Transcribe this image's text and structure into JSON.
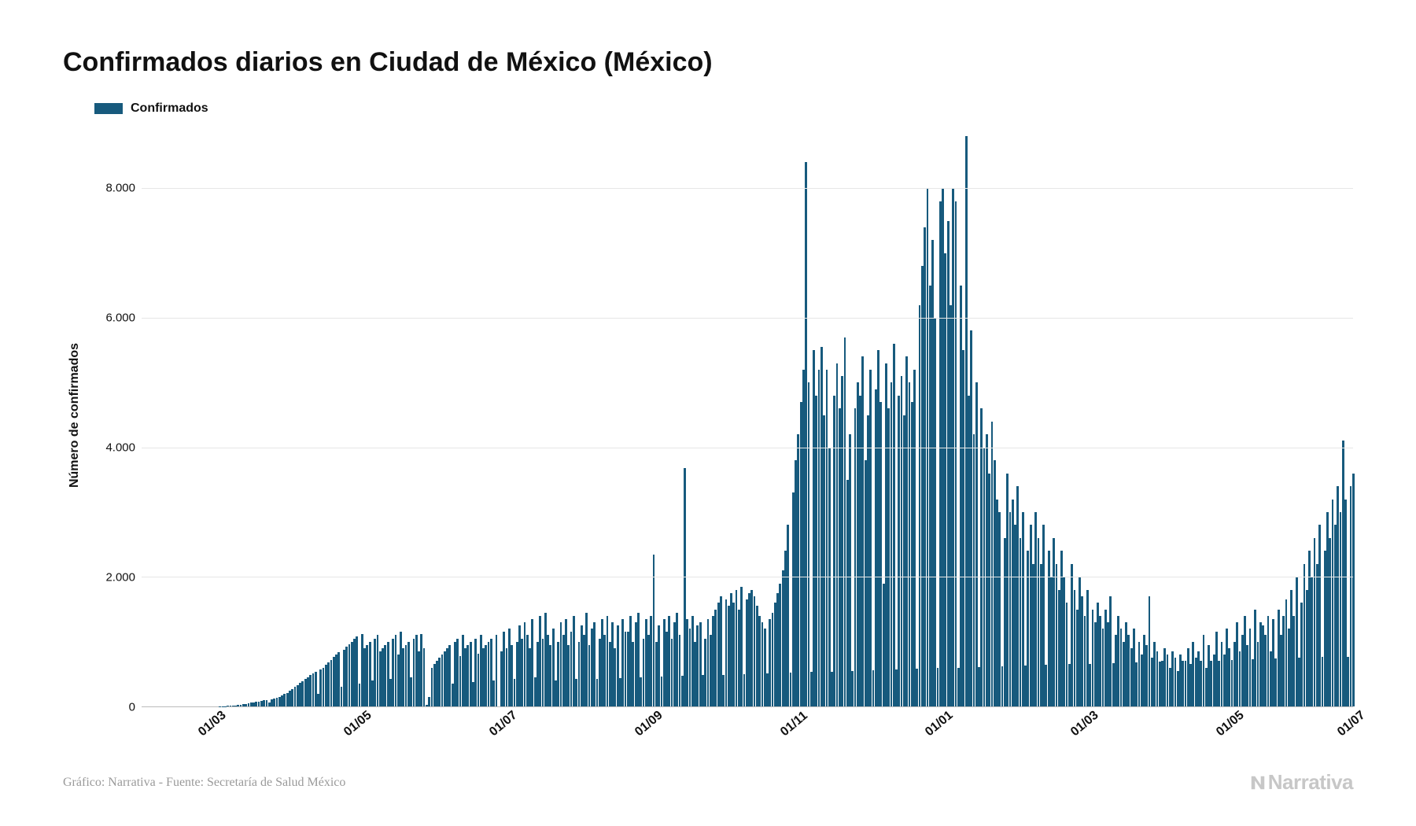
{
  "title": "Confirmados diarios en Ciudad de México (México)",
  "legend": {
    "label": "Confirmados",
    "color": "#175a7d"
  },
  "ylabel": "Número de confirmados",
  "source": "Gráfico: Narrativa - Fuente: Secretaría de Salud México",
  "brand": "Narrativa",
  "chart": {
    "type": "bar",
    "bar_color": "#175a7d",
    "background_color": "#ffffff",
    "grid_color": "#e6e6e6",
    "axis_color": "#bbbbbb",
    "title_fontsize": 34,
    "label_fontsize": 16,
    "tick_fontsize": 15,
    "ylim": [
      0,
      9000
    ],
    "yticks": [
      0,
      2000,
      4000,
      6000,
      8000
    ],
    "ytick_labels": [
      "0",
      "2.000",
      "4.000",
      "6.000",
      "8.000"
    ],
    "xtick_labels": [
      "01/03",
      "01/05",
      "01/07",
      "01/09",
      "01/11",
      "01/01",
      "01/03",
      "01/05",
      "01/07"
    ],
    "xtick_positions_pct": [
      6,
      18,
      30,
      42,
      54,
      66,
      78,
      90,
      100
    ],
    "values": [
      0,
      0,
      0,
      0,
      0,
      0,
      0,
      0,
      0,
      0,
      0,
      0,
      0,
      0,
      0,
      0,
      0,
      0,
      0,
      0,
      0,
      0,
      0,
      0,
      0,
      0,
      0,
      0,
      0,
      0,
      2,
      3,
      5,
      8,
      10,
      15,
      18,
      22,
      28,
      35,
      40,
      48,
      55,
      62,
      70,
      78,
      85,
      92,
      100,
      60,
      110,
      120,
      135,
      150,
      170,
      190,
      210,
      240,
      270,
      300,
      330,
      360,
      390,
      420,
      450,
      480,
      510,
      540,
      200,
      570,
      600,
      640,
      680,
      720,
      760,
      800,
      840,
      300,
      880,
      920,
      960,
      1000,
      1040,
      1080,
      350,
      1120,
      900,
      950,
      1000,
      400,
      1050,
      1100,
      850,
      900,
      950,
      1000,
      420,
      1050,
      1100,
      800,
      1150,
      900,
      950,
      1000,
      450,
      1050,
      1100,
      850,
      1120,
      900,
      30,
      150,
      600,
      650,
      700,
      750,
      800,
      850,
      900,
      950,
      350,
      1000,
      1050,
      780,
      1100,
      900,
      950,
      1000,
      380,
      1050,
      820,
      1100,
      900,
      950,
      1000,
      1050,
      400,
      1100,
      0,
      850,
      1150,
      900,
      1200,
      950,
      420,
      1000,
      1250,
      1050,
      1300,
      1100,
      900,
      1350,
      450,
      1000,
      1400,
      1050,
      1450,
      1100,
      950,
      1200,
      400,
      1000,
      1300,
      1100,
      1350,
      950,
      1150,
      1400,
      420,
      1000,
      1250,
      1100,
      1450,
      950,
      1200,
      1300,
      430,
      1050,
      1350,
      1100,
      1400,
      1000,
      1300,
      900,
      1250,
      440,
      1350,
      1150,
      1150,
      1400,
      1000,
      1300,
      1450,
      450,
      1050,
      1350,
      1100,
      1400,
      2350,
      1000,
      1250,
      460,
      1350,
      1150,
      1400,
      1050,
      1300,
      1450,
      1100,
      470,
      3680,
      1350,
      1200,
      1400,
      1000,
      1250,
      1300,
      480,
      1050,
      1350,
      1100,
      1400,
      1500,
      1600,
      1700,
      490,
      1650,
      1550,
      1750,
      1600,
      1800,
      1500,
      1850,
      500,
      1650,
      1750,
      1800,
      1700,
      1550,
      1400,
      1300,
      1200,
      510,
      1350,
      1450,
      1600,
      1750,
      1900,
      2100,
      2400,
      2800,
      520,
      3300,
      3800,
      4200,
      4700,
      5200,
      8400,
      5000,
      530,
      5500,
      4800,
      5200,
      5550,
      4500,
      5200,
      4000,
      540,
      4800,
      5300,
      4600,
      5100,
      5700,
      3500,
      4200,
      550,
      4600,
      5000,
      4800,
      5400,
      3800,
      4500,
      5200,
      560,
      4900,
      5500,
      4700,
      1900,
      5300,
      4600,
      5000,
      5600,
      570,
      4800,
      5100,
      4500,
      5400,
      5000,
      4700,
      5200,
      580,
      6200,
      6800,
      7400,
      8000,
      6500,
      7200,
      6000,
      590,
      7800,
      8000,
      7000,
      7500,
      6200,
      8000,
      7800,
      600,
      6500,
      5500,
      8800,
      4800,
      5800,
      4200,
      5000,
      610,
      4600,
      4000,
      4200,
      3600,
      4400,
      3800,
      3200,
      3000,
      620,
      2600,
      3600,
      3000,
      3200,
      2800,
      3400,
      2600,
      3000,
      630,
      2400,
      2800,
      2200,
      3000,
      2600,
      2200,
      2800,
      640,
      2400,
      2000,
      2600,
      2200,
      1800,
      2400,
      2000,
      1600,
      650,
      2200,
      1800,
      1500,
      2000,
      1700,
      1400,
      1800,
      660,
      1500,
      1300,
      1600,
      1400,
      1200,
      1500,
      1300,
      1700,
      670,
      1100,
      1400,
      1200,
      1000,
      1300,
      1100,
      900,
      1200,
      680,
      1000,
      800,
      1100,
      950,
      1700,
      750,
      1000,
      850,
      690,
      700,
      900,
      800,
      600,
      850,
      750,
      550,
      800,
      700,
      700,
      900,
      650,
      1000,
      750,
      850,
      700,
      1100,
      600,
      950,
      710,
      800,
      1150,
      700,
      1000,
      800,
      1200,
      900,
      720,
      1000,
      1300,
      850,
      1100,
      1400,
      950,
      1200,
      730,
      1500,
      1000,
      1300,
      1250,
      1100,
      1400,
      850,
      1350,
      740,
      1500,
      1100,
      1400,
      1650,
      1200,
      1800,
      1400,
      2000,
      750,
      1600,
      2200,
      1800,
      2400,
      2000,
      2600,
      2200,
      2800,
      760,
      2400,
      3000,
      2600,
      3200,
      2800,
      3400,
      3000,
      4100,
      3200,
      770,
      3400,
      3600
    ]
  }
}
